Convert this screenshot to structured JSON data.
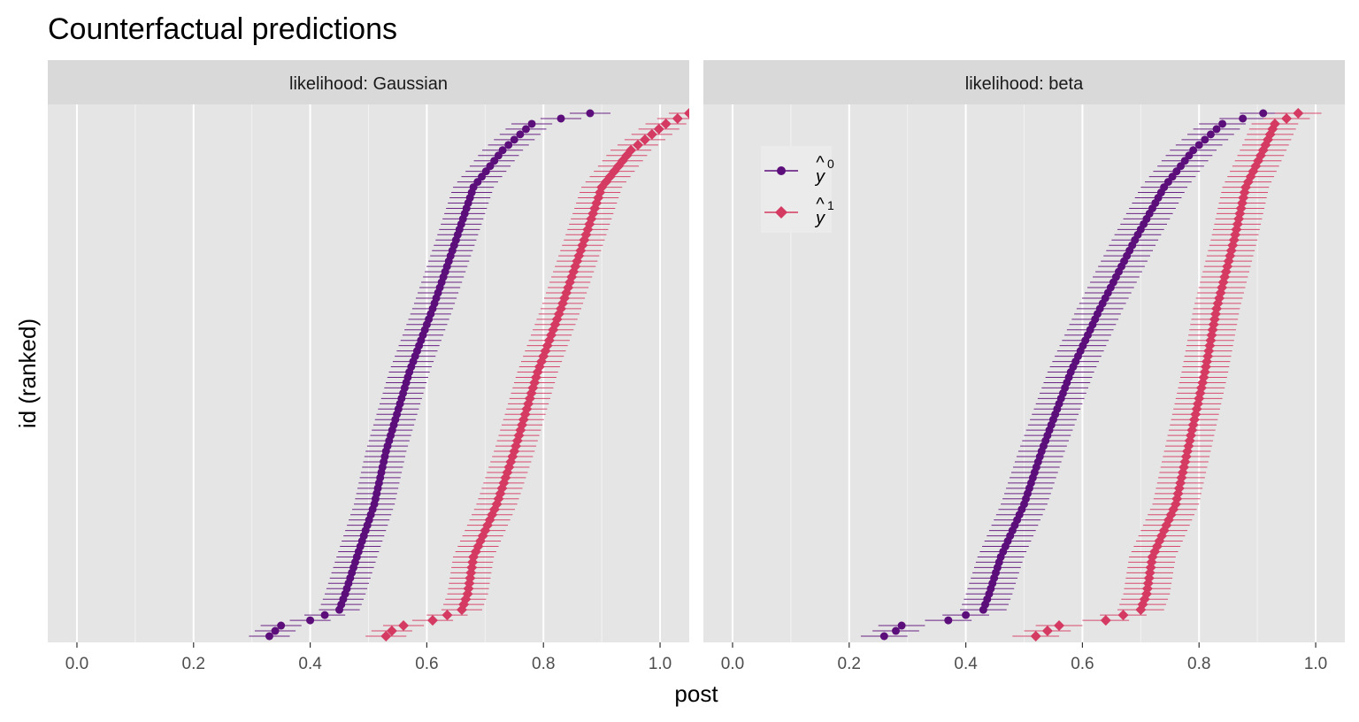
{
  "chart_data": {
    "type": "scatter",
    "title": "Counterfactual predictions",
    "xlabel": "post",
    "ylabel": "id (ranked)",
    "xlim": [
      -0.05,
      1.05
    ],
    "x_ticks": [
      0.0,
      0.2,
      0.4,
      0.6,
      0.8,
      1.0
    ],
    "x_tick_labels": [
      "0.0",
      "0.2",
      "0.4",
      "0.6",
      "0.8",
      "1.0"
    ],
    "n_ids": 100,
    "grid": true,
    "legend_position": "top-left of right panel",
    "legend": [
      {
        "key": "y0",
        "hat": "y",
        "sup": "0",
        "color": "#5c0e7a",
        "shape": "circle"
      },
      {
        "key": "y1",
        "hat": "y",
        "sup": "1",
        "color": "#d43a62",
        "shape": "diamond"
      }
    ],
    "panels": [
      {
        "label": "likelihood: Gaussian",
        "interval_halfwidth": 0.035,
        "y0": {
          "ranks": [
            0,
            1,
            2,
            3,
            5,
            8,
            15,
            25,
            35,
            50,
            62,
            75,
            85,
            92,
            97,
            99
          ],
          "values": [
            0.33,
            0.34,
            0.35,
            0.4,
            0.45,
            0.46,
            0.48,
            0.51,
            0.53,
            0.57,
            0.61,
            0.65,
            0.68,
            0.73,
            0.78,
            0.88
          ]
        },
        "y1": {
          "ranks": [
            0,
            1,
            2,
            3,
            5,
            8,
            15,
            25,
            35,
            50,
            62,
            75,
            85,
            92,
            97,
            99
          ],
          "values": [
            0.53,
            0.54,
            0.56,
            0.61,
            0.66,
            0.67,
            0.68,
            0.72,
            0.75,
            0.79,
            0.83,
            0.87,
            0.9,
            0.95,
            1.01,
            1.05
          ]
        }
      },
      {
        "label": "likelihood: beta",
        "interval_halfwidth": 0.04,
        "y0": {
          "ranks": [
            0,
            1,
            2,
            3,
            5,
            8,
            15,
            25,
            35,
            50,
            62,
            75,
            85,
            92,
            97,
            99
          ],
          "values": [
            0.26,
            0.28,
            0.29,
            0.37,
            0.43,
            0.44,
            0.46,
            0.5,
            0.53,
            0.58,
            0.63,
            0.69,
            0.74,
            0.79,
            0.84,
            0.91
          ]
        },
        "y1": {
          "ranks": [
            0,
            1,
            2,
            3,
            5,
            8,
            15,
            25,
            35,
            50,
            62,
            75,
            85,
            92,
            97,
            99
          ],
          "values": [
            0.52,
            0.54,
            0.56,
            0.64,
            0.7,
            0.71,
            0.72,
            0.76,
            0.78,
            0.81,
            0.83,
            0.86,
            0.88,
            0.91,
            0.93,
            0.97
          ]
        }
      }
    ]
  }
}
